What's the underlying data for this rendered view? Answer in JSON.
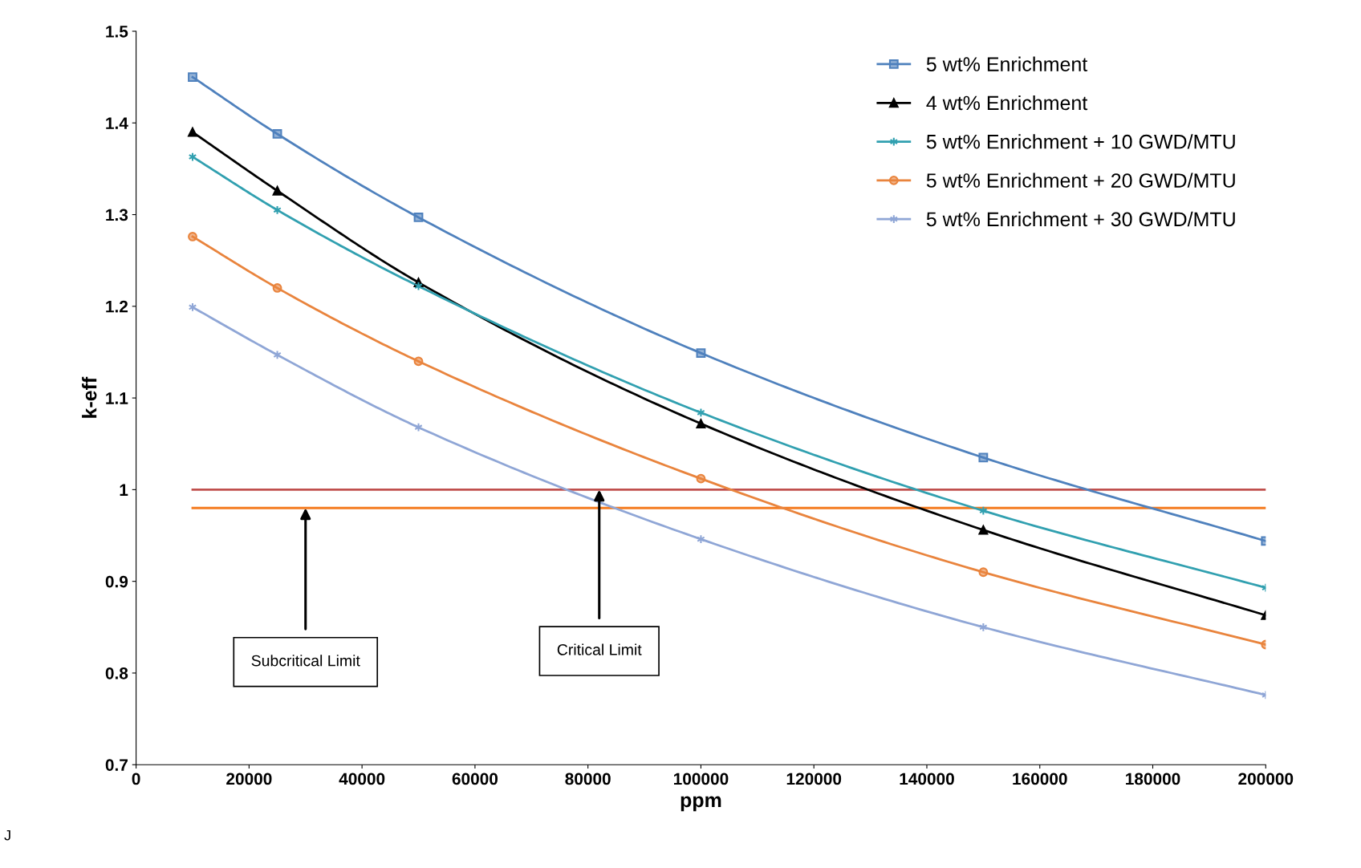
{
  "chart_data": {
    "type": "line",
    "xlabel": "ppm",
    "ylabel": "k-eff",
    "x": [
      10000,
      25000,
      50000,
      100000,
      150000,
      200000
    ],
    "series": [
      {
        "name": "5 wt% Enrichment",
        "color": "#4f81bd",
        "marker": "square",
        "values": [
          1.45,
          1.388,
          1.297,
          1.149,
          1.035,
          0.944
        ]
      },
      {
        "name": "4 wt% Enrichment",
        "color": "#000000",
        "marker": "triangle",
        "values": [
          1.39,
          1.326,
          1.226,
          1.072,
          0.956,
          0.863
        ]
      },
      {
        "name": "5 wt% Enrichment + 10 GWD/MTU",
        "color": "#31a0b0",
        "marker": "cross",
        "values": [
          1.363,
          1.305,
          1.222,
          1.084,
          0.977,
          0.893
        ]
      },
      {
        "name": "5 wt% Enrichment + 20 GWD/MTU",
        "color": "#e9843d",
        "marker": "circle",
        "values": [
          1.276,
          1.22,
          1.14,
          1.012,
          0.91,
          0.831
        ]
      },
      {
        "name": "5 wt% Enrichment + 30 GWD/MTU",
        "color": "#8fa6d6",
        "marker": "cross",
        "values": [
          1.199,
          1.147,
          1.068,
          0.946,
          0.85,
          0.776
        ]
      }
    ],
    "ref_lines": [
      {
        "axis": "y",
        "value": 1.0,
        "label": null,
        "color": "#c0504d"
      },
      {
        "axis": "y",
        "value": 0.98,
        "label": null,
        "color": "#f47b20"
      }
    ],
    "annotations": [
      "Subcritical Limit",
      "Critical Limit",
      "J"
    ],
    "xlim": [
      0,
      200000
    ],
    "xticks": [
      0,
      20000,
      40000,
      60000,
      80000,
      100000,
      120000,
      140000,
      160000,
      180000,
      200000
    ],
    "ylim": [
      0.7,
      1.5
    ],
    "yticks": [
      {
        "value": 0.7,
        "label": "0.7"
      },
      {
        "value": 0.8,
        "label": "0.8"
      },
      {
        "value": 0.9,
        "label": "0.9"
      },
      {
        "value": 1.0,
        "label": "1"
      },
      {
        "value": 1.1,
        "label": "1.1"
      },
      {
        "value": 1.2,
        "label": "1.2"
      },
      {
        "value": 1.3,
        "label": "1.3"
      },
      {
        "value": 1.4,
        "label": "1.4"
      },
      {
        "value": 1.5,
        "label": "1.5"
      }
    ],
    "grid": false,
    "legend": "top right"
  }
}
